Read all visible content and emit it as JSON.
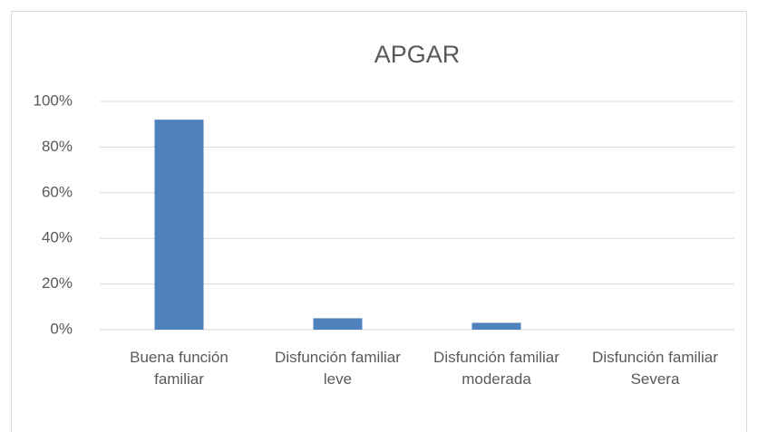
{
  "chart_data": {
    "type": "bar",
    "title": "APGAR",
    "categories": [
      "Buena función familiar",
      "Disfunción familiar leve",
      "Disfunción familiar moderada",
      "Disfunción familiar Severa"
    ],
    "values": [
      92,
      5,
      3,
      0
    ],
    "color": "#4f81bd",
    "ylim": [
      0,
      100
    ],
    "yticks": [
      {
        "value": 0,
        "label": "0%"
      },
      {
        "value": 20,
        "label": "20%"
      },
      {
        "value": 40,
        "label": "40%"
      },
      {
        "value": 60,
        "label": "60%"
      },
      {
        "value": 80,
        "label": "80%"
      },
      {
        "value": 100,
        "label": "100%"
      }
    ],
    "grid": true
  }
}
